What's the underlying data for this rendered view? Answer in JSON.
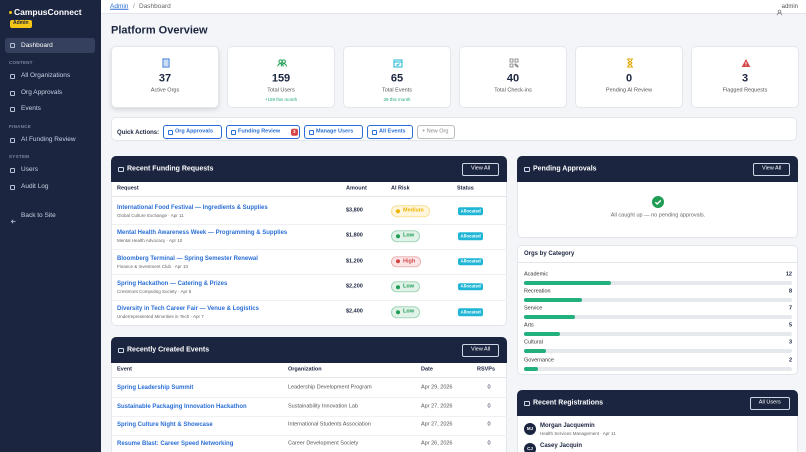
{
  "sidebar": {
    "brand": "CampusConnect",
    "badge": "Admin",
    "top": [
      "Dashboard"
    ],
    "sections": [
      {
        "title": "CONTENT",
        "items": [
          "All Organizations",
          "Org Approvals",
          "Events"
        ]
      },
      {
        "title": "FINANCE",
        "items": [
          "AI Funding Review"
        ]
      },
      {
        "title": "SYSTEM",
        "items": [
          "Users",
          "Audit Log"
        ]
      }
    ],
    "back": "Back to Site"
  },
  "topbar": {
    "crumbs": [
      "Admin",
      "Dashboard"
    ],
    "separator": "/",
    "user": "admin"
  },
  "title": "Platform Overview",
  "stats": [
    {
      "value": 37,
      "label": "Active Orgs"
    },
    {
      "value": 159,
      "label": "Total Users",
      "note": "+159 this month"
    },
    {
      "value": 65,
      "label": "Total Events",
      "note": "39 this month"
    },
    {
      "value": 40,
      "label": "Total Check-ins"
    },
    {
      "value": 0,
      "label": "Pending AI Review"
    },
    {
      "value": 3,
      "label": "Flagged Requests"
    }
  ],
  "quick_actions": {
    "label": "Quick Actions:",
    "buttons": [
      {
        "label": "Org Approvals"
      },
      {
        "label": "Funding Review",
        "badge": 3
      },
      {
        "label": "Manage Users"
      },
      {
        "label": "All Events"
      },
      {
        "label": "+ New Org"
      }
    ]
  },
  "funding": {
    "title": "Recent Funding Requests",
    "action": "View All",
    "columns": [
      "Request",
      "Amount",
      "AI Risk",
      "Status"
    ],
    "rows": [
      {
        "request": "International Food Festival — Ingredients & Supplies",
        "meta": "Global Culture Exchange · Apr 11",
        "amount": "$3,800",
        "risk": "Medium",
        "risk_color": "#f0b400",
        "status": "Allocated"
      },
      {
        "request": "Mental Health Awareness Week — Programming & Supplies",
        "meta": "Mental Health Advocacy · Apr 10",
        "amount": "$1,800",
        "risk": "Low",
        "risk_color": "#1f9d55",
        "status": "Allocated"
      },
      {
        "request": "Bloomberg Terminal — Spring Semester Renewal",
        "meta": "Finance & Investment Club · Apr 10",
        "amount": "$1,200",
        "risk": "High",
        "risk_color": "#d64545",
        "status": "Allocated"
      },
      {
        "request": "Spring Hackathon — Catering & Prizes",
        "meta": "Crestmont Computing Society · Apr 8",
        "amount": "$2,200",
        "risk": "Low",
        "risk_color": "#1f9d55",
        "status": "Allocated"
      },
      {
        "request": "Diversity in Tech Career Fair — Venue & Logistics",
        "meta": "Underrepresented Minorities in Tech · Apr 7",
        "amount": "$2,400",
        "risk": "Low",
        "risk_color": "#1f9d55",
        "status": "Allocated"
      }
    ]
  },
  "events": {
    "title": "Recently Created Events",
    "action": "View All",
    "columns": [
      "Event",
      "Organization",
      "Date",
      "RSVPs"
    ],
    "rows": [
      {
        "event": "Spring Leadership Summit",
        "org": "Leadership Development Program",
        "date": "Apr 29, 2026",
        "rsvps": 0
      },
      {
        "event": "Sustainable Packaging Innovation Hackathon",
        "org": "Sustainability Innovation Lab",
        "date": "Apr 27, 2026",
        "rsvps": 0
      },
      {
        "event": "Spring Culture Night & Showcase",
        "org": "International Students Association",
        "date": "Apr 27, 2026",
        "rsvps": 0
      },
      {
        "event": "Resume Blast: Career Speed Networking",
        "org": "Career Development Society",
        "date": "Apr 26, 2026",
        "rsvps": 0
      }
    ]
  },
  "pending": {
    "title": "Pending Approvals",
    "action": "View All",
    "message": "All caught up — no pending approvals."
  },
  "categories": {
    "title": "Orgs by Category",
    "color": "#22b07d",
    "items": [
      {
        "name": "Academic",
        "count": 12
      },
      {
        "name": "Recreation",
        "count": 8
      },
      {
        "name": "Service",
        "count": 7
      },
      {
        "name": "Arts",
        "count": 5
      },
      {
        "name": "Cultural",
        "count": 3
      },
      {
        "name": "Governance",
        "count": 2
      }
    ]
  },
  "registrations": {
    "title": "Recent Registrations",
    "action": "All Users",
    "rows": [
      {
        "initials": "MJ",
        "name": "Morgan Jacquemin",
        "meta": "Health Services Management · Apr 11"
      },
      {
        "initials": "CJ",
        "name": "Casey Jacquin"
      }
    ]
  }
}
